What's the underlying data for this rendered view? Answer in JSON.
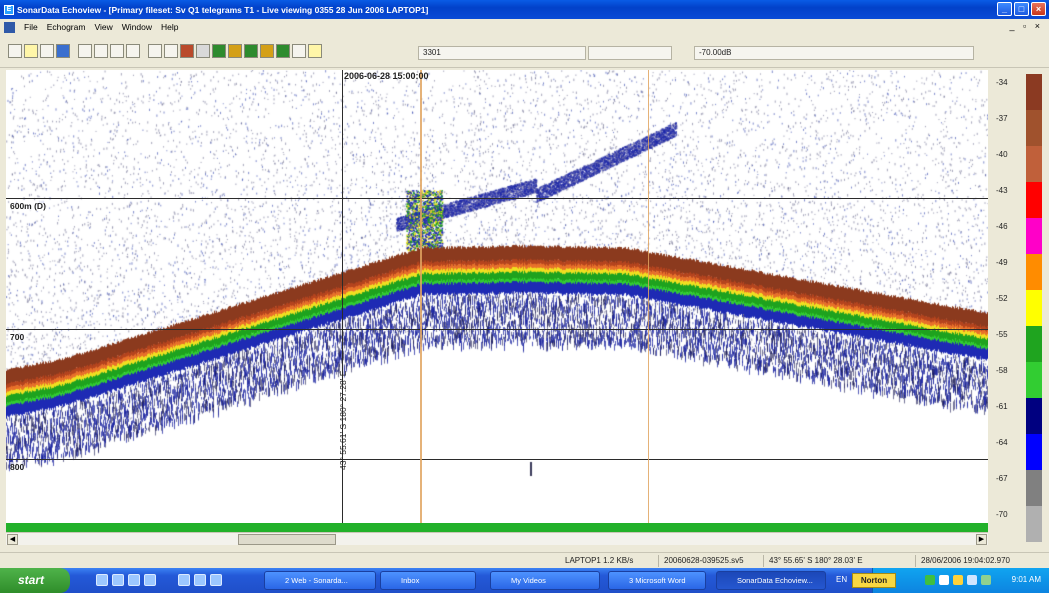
{
  "window": {
    "title": "SonarData Echoview - [Primary fileset: Sv Q1 telegrams T1 - Live viewing 0355 28 Jun 2006 LAPTOP1]",
    "min_glyph": "_",
    "max_glyph": "□",
    "close_glyph": "×"
  },
  "menu": {
    "items": [
      "File",
      "Echogram",
      "View",
      "Window",
      "Help"
    ],
    "mdi_controls": "_ ▫ ×"
  },
  "toolbar": {
    "ping_field": "3301",
    "threshold_field": "-70.00dB"
  },
  "echogram": {
    "time_marker": "2006-06-28 15:00:00",
    "position_vertical": "43° 55.61' S 180° 27.28' E",
    "depth_lines": [
      "600m (D)",
      "700",
      "800"
    ],
    "colors": {
      "background": "#ffffff",
      "brown": "#8b3a1e",
      "orange": "#e8702a",
      "yellow": "#f0e020",
      "green": "#1ea21e",
      "blue": "#1e2ab4",
      "grey": "#5a5a5a"
    }
  },
  "color_scale": {
    "labels": [
      "-34",
      "-37",
      "-40",
      "-43",
      "-46",
      "-49",
      "-52",
      "-55",
      "-58",
      "-61",
      "-64",
      "-67",
      "-70"
    ],
    "swatches": [
      "#8b3a22",
      "#a0522d",
      "#c0603a",
      "#ff0000",
      "#ff00c8",
      "#ff8c00",
      "#ffff00",
      "#1fa41f",
      "#32cd32",
      "#000080",
      "#0000ff",
      "#808080",
      "#b0b0b0"
    ]
  },
  "status_bar": {
    "host": "LAPTOP1 1.2 KB/s",
    "file": "20060628-039525.sv5",
    "position": "43° 55.65' S 180° 28.03' E",
    "datetime": "28/06/2006 19:04:02.970"
  },
  "taskbar": {
    "start_label": "start",
    "tasks": [
      "2 Web - Sonarda...",
      "Inbox",
      "My Videos",
      "3 Microsoft Word",
      "SonarData Echoview..."
    ],
    "lang": "EN",
    "norton": "Norton",
    "clock": "9:01 AM"
  }
}
